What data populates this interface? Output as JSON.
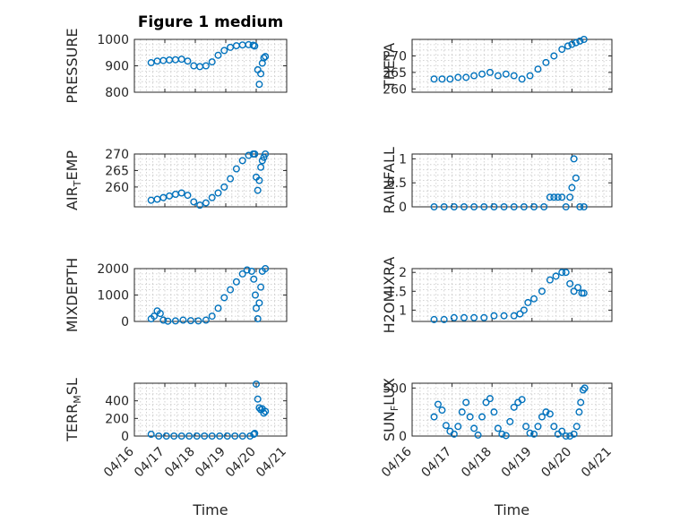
{
  "chart_data": [
    {
      "type": "scatter",
      "title": "Figure 1 medium",
      "ylabel": "PRESSURE",
      "ylim": [
        800,
        1000
      ],
      "yticks": [
        "1000",
        "900",
        "800"
      ],
      "xlim": [
        "04/16",
        "04/21"
      ],
      "xticks": [],
      "x": [
        0.55,
        0.75,
        0.95,
        1.15,
        1.35,
        1.55,
        1.75,
        1.95,
        2.15,
        2.35,
        2.55,
        2.75,
        2.95,
        3.15,
        3.35,
        3.55,
        3.75,
        3.9,
        3.95,
        4.05,
        4.1,
        4.15,
        4.2,
        4.25,
        4.3
      ],
      "y": [
        912,
        918,
        920,
        922,
        923,
        925,
        918,
        900,
        897,
        900,
        915,
        940,
        958,
        970,
        976,
        979,
        980,
        978,
        975,
        885,
        830,
        870,
        910,
        930,
        935
      ]
    },
    {
      "type": "scatter",
      "title": "",
      "ylabel": "THETA",
      "ylim": [
        259,
        275
      ],
      "yticks": [
        "270",
        "265",
        "260"
      ],
      "xlim": [
        "04/16",
        "04/21"
      ],
      "xticks": [],
      "x": [
        0.55,
        0.75,
        0.95,
        1.15,
        1.35,
        1.55,
        1.75,
        1.95,
        2.15,
        2.35,
        2.55,
        2.75,
        2.95,
        3.15,
        3.35,
        3.55,
        3.75,
        3.9,
        4.0,
        4.1,
        4.2,
        4.3
      ],
      "y": [
        263,
        263,
        263,
        263.5,
        263.5,
        264,
        264.5,
        265,
        264,
        264.5,
        264,
        263,
        264,
        266,
        268,
        270,
        272,
        273,
        273.5,
        274,
        274.5,
        275
      ]
    },
    {
      "type": "scatter",
      "title": "",
      "ylabel": "AIR_TEMP",
      "ylabel_main": "AIR",
      "ylabel_sub": "T",
      "ylabel_rest": "EMP",
      "ylim": [
        254,
        270
      ],
      "yticks": [
        "270",
        "265",
        "260"
      ],
      "xlim": [
        "04/16",
        "04/21"
      ],
      "xticks": [],
      "x": [
        0.55,
        0.75,
        0.95,
        1.15,
        1.35,
        1.55,
        1.75,
        1.95,
        2.15,
        2.35,
        2.55,
        2.75,
        2.95,
        3.15,
        3.35,
        3.55,
        3.75,
        3.9,
        3.95,
        4.0,
        4.05,
        4.1,
        4.15,
        4.2,
        4.25,
        4.3
      ],
      "y": [
        256,
        256.3,
        256.8,
        257.3,
        257.8,
        258.2,
        257.5,
        255.5,
        254.5,
        255.2,
        256.8,
        258.2,
        260,
        262.5,
        265.5,
        268,
        269.6,
        270,
        270,
        263,
        259,
        262,
        266,
        268,
        269,
        270
      ]
    },
    {
      "type": "scatter",
      "title": "",
      "ylabel": "RAINFALL",
      "ylim": [
        0,
        1.1
      ],
      "yticks": [
        "1",
        "0.5",
        "0"
      ],
      "xlim": [
        "04/16",
        "04/21"
      ],
      "xticks": [],
      "x": [
        0.55,
        0.8,
        1.05,
        1.3,
        1.55,
        1.8,
        2.05,
        2.3,
        2.55,
        2.8,
        3.05,
        3.3,
        3.45,
        3.55,
        3.65,
        3.75,
        3.85,
        3.95,
        4.0,
        4.05,
        4.1,
        4.2,
        4.3
      ],
      "y": [
        0,
        0,
        0,
        0,
        0,
        0,
        0,
        0,
        0,
        0,
        0,
        0,
        0.2,
        0.2,
        0.2,
        0.2,
        0,
        0.2,
        0.4,
        1.0,
        0.6,
        0,
        0
      ]
    },
    {
      "type": "scatter",
      "title": "",
      "ylabel": "MIXDEPTH",
      "ylim": [
        0,
        2000
      ],
      "yticks": [
        "2000",
        "1000",
        "0"
      ],
      "xlim": [
        "04/16",
        "04/21"
      ],
      "xticks": [],
      "x": [
        0.55,
        0.65,
        0.75,
        0.85,
        0.95,
        1.1,
        1.35,
        1.6,
        1.85,
        2.1,
        2.35,
        2.55,
        2.75,
        2.95,
        3.15,
        3.35,
        3.55,
        3.7,
        3.85,
        3.92,
        3.97,
        4.0,
        4.05,
        4.1,
        4.15,
        4.2,
        4.3
      ],
      "y": [
        100,
        200,
        400,
        300,
        50,
        10,
        20,
        50,
        30,
        20,
        50,
        200,
        500,
        900,
        1200,
        1500,
        1800,
        1950,
        1900,
        1600,
        1000,
        500,
        100,
        700,
        1300,
        1900,
        2000
      ]
    },
    {
      "type": "scatter",
      "title": "",
      "ylabel": "H2OMIXRA",
      "ylim": [
        0.7,
        2.1
      ],
      "yticks": [
        "2",
        "1.5",
        "1"
      ],
      "xlim": [
        "04/16",
        "04/21"
      ],
      "xticks": [],
      "x": [
        0.55,
        0.8,
        1.05,
        1.3,
        1.55,
        1.8,
        2.05,
        2.3,
        2.55,
        2.7,
        2.8,
        2.9,
        3.05,
        3.25,
        3.45,
        3.6,
        3.75,
        3.85,
        3.95,
        4.05,
        4.15,
        4.25,
        4.3
      ],
      "y": [
        0.75,
        0.75,
        0.8,
        0.8,
        0.8,
        0.8,
        0.85,
        0.85,
        0.85,
        0.9,
        1.0,
        1.2,
        1.3,
        1.5,
        1.8,
        1.9,
        2.0,
        2.0,
        1.7,
        1.5,
        1.6,
        1.45,
        1.45
      ]
    },
    {
      "type": "scatter",
      "title": "",
      "ylabel": "TERR_MSL",
      "ylabel_main": "TERR",
      "ylabel_sub": "M",
      "ylabel_rest": "SL",
      "ylim": [
        0,
        600
      ],
      "yticks": [
        "400",
        "200",
        "0"
      ],
      "xlim": [
        "04/16",
        "04/21"
      ],
      "xticks": [
        "04/16",
        "04/17",
        "04/18",
        "04/19",
        "04/20",
        "04/21"
      ],
      "xlabel": "Time",
      "x": [
        0.55,
        0.8,
        1.05,
        1.3,
        1.55,
        1.8,
        2.05,
        2.3,
        2.55,
        2.8,
        3.05,
        3.3,
        3.55,
        3.8,
        3.92,
        3.95,
        4.0,
        4.05,
        4.1,
        4.15,
        4.2,
        4.25,
        4.3
      ],
      "y": [
        20,
        0,
        0,
        0,
        0,
        0,
        0,
        0,
        0,
        0,
        0,
        0,
        0,
        0,
        20,
        30,
        590,
        420,
        320,
        300,
        310,
        260,
        280
      ]
    },
    {
      "type": "scatter",
      "title": "",
      "ylabel": "SUN_FLUX",
      "ylabel_main": "SUN",
      "ylabel_sub": "F",
      "ylabel_rest": "LUX",
      "ylim": [
        0,
        550
      ],
      "yticks": [
        "500",
        "0"
      ],
      "xlim": [
        "04/16",
        "04/21"
      ],
      "xticks": [
        "04/16",
        "04/17",
        "04/18",
        "04/19",
        "04/20",
        "04/21"
      ],
      "xlabel": "Time",
      "x": [
        0.55,
        0.65,
        0.75,
        0.85,
        0.95,
        1.05,
        1.15,
        1.25,
        1.35,
        1.45,
        1.55,
        1.65,
        1.75,
        1.85,
        1.95,
        2.05,
        2.15,
        2.25,
        2.35,
        2.45,
        2.55,
        2.65,
        2.75,
        2.85,
        2.95,
        3.05,
        3.15,
        3.25,
        3.35,
        3.45,
        3.55,
        3.65,
        3.75,
        3.85,
        3.95,
        4.05,
        4.12,
        4.18,
        4.22,
        4.28,
        4.32
      ],
      "y": [
        200,
        330,
        270,
        110,
        50,
        20,
        100,
        250,
        350,
        200,
        80,
        10,
        200,
        350,
        390,
        250,
        80,
        20,
        5,
        150,
        300,
        350,
        380,
        100,
        30,
        20,
        100,
        200,
        250,
        230,
        100,
        20,
        50,
        0,
        0,
        20,
        100,
        250,
        350,
        480,
        500
      ]
    }
  ]
}
